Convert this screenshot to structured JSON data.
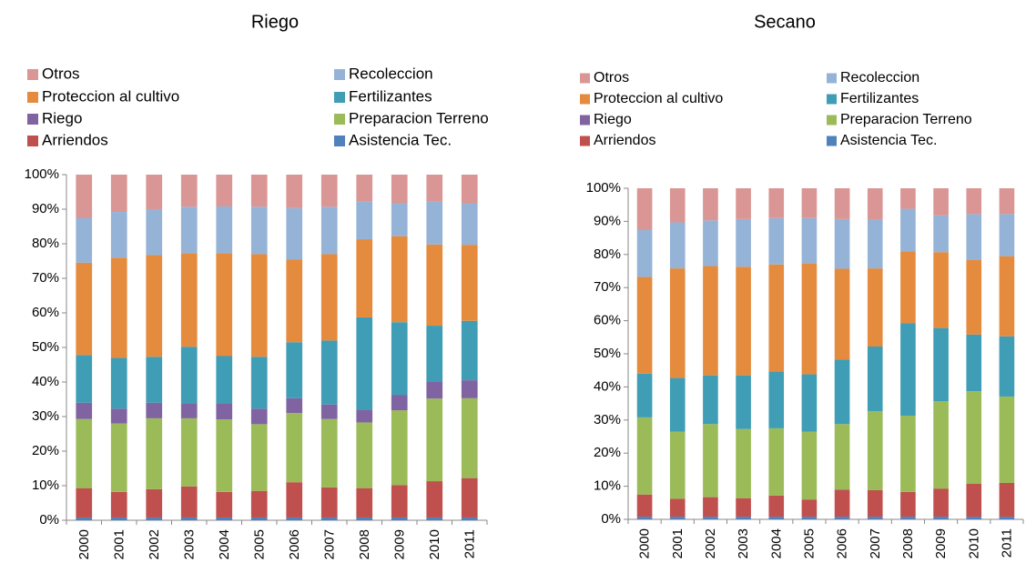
{
  "chart_data": [
    {
      "type": "bar",
      "stacked": true,
      "title": "Riego",
      "categories": [
        "2000",
        "2001",
        "2002",
        "2003",
        "2004",
        "2005",
        "2006",
        "2007",
        "2008",
        "2009",
        "2010",
        "2011"
      ],
      "ylim": [
        0,
        100
      ],
      "yticks": [
        {
          "value": 0,
          "label": "0%"
        },
        {
          "value": 10,
          "label": "10%"
        },
        {
          "value": 20,
          "label": "20%"
        },
        {
          "value": 30,
          "label": "30%"
        },
        {
          "value": 40,
          "label": "40%"
        },
        {
          "value": 50,
          "label": "50%"
        },
        {
          "value": 60,
          "label": "60%"
        },
        {
          "value": 70,
          "label": "70%"
        },
        {
          "value": 80,
          "label": "80%"
        },
        {
          "value": 90,
          "label": "90%"
        },
        {
          "value": 100,
          "label": "100%"
        }
      ],
      "series": [
        {
          "name": "Asistencia Tec.",
          "color": "#4f81bd",
          "values": [
            0.8,
            0.8,
            0.8,
            0.8,
            0.8,
            0.8,
            0.8,
            0.8,
            0.8,
            0.8,
            0.8,
            0.8
          ]
        },
        {
          "name": "Arriendos",
          "color": "#c0504d",
          "values": [
            8.5,
            7.4,
            8.2,
            9,
            7.4,
            7.7,
            10.2,
            8.7,
            8.5,
            9.4,
            10.5,
            11.4
          ]
        },
        {
          "name": "Preparacion Terreno",
          "color": "#9bbb59",
          "values": [
            20,
            19.8,
            20.5,
            19.7,
            21,
            19.3,
            20,
            19.8,
            19,
            21.6,
            23.9,
            23.1
          ]
        },
        {
          "name": "Riego",
          "color": "#8064a2",
          "values": [
            4.7,
            4.3,
            4.5,
            4.3,
            4.6,
            4.5,
            4.3,
            4.2,
            3.7,
            4.5,
            4.8,
            5.2
          ]
        },
        {
          "name": "Fertilizantes",
          "color": "#3f9db5",
          "values": [
            13.8,
            14.7,
            13.3,
            16.4,
            13.7,
            15,
            16.2,
            18.5,
            26.7,
            21,
            16.3,
            17.2
          ]
        },
        {
          "name": "Proteccion al cultivo",
          "color": "#e58b3e",
          "values": [
            26.7,
            29,
            29.4,
            27.1,
            29.8,
            29.7,
            24,
            25,
            22.6,
            24.9,
            23.5,
            22
          ]
        },
        {
          "name": "Recoleccion",
          "color": "#95b3d7",
          "values": [
            13,
            13.2,
            13.3,
            13.4,
            13.5,
            13.7,
            14.8,
            13.7,
            10.9,
            9.5,
            12.4,
            12
          ]
        },
        {
          "name": "Otros",
          "color": "#d99694",
          "values": [
            12.5,
            10.8,
            10,
            9.3,
            9.2,
            9.3,
            9.7,
            9.3,
            7.8,
            8.3,
            7.8,
            8.3
          ]
        }
      ]
    },
    {
      "type": "bar",
      "stacked": true,
      "title": "Secano",
      "categories": [
        "2000",
        "2001",
        "2002",
        "2003",
        "2004",
        "2005",
        "2006",
        "2007",
        "2008",
        "2009",
        "2010",
        "2011"
      ],
      "ylim": [
        0,
        100
      ],
      "yticks": [
        {
          "value": 0,
          "label": "0%"
        },
        {
          "value": 10,
          "label": "10%"
        },
        {
          "value": 20,
          "label": "20%"
        },
        {
          "value": 30,
          "label": "30%"
        },
        {
          "value": 40,
          "label": "40%"
        },
        {
          "value": 50,
          "label": "50%"
        },
        {
          "value": 60,
          "label": "60%"
        },
        {
          "value": 70,
          "label": "70%"
        },
        {
          "value": 80,
          "label": "80%"
        },
        {
          "value": 90,
          "label": "90%"
        },
        {
          "value": 100,
          "label": "100%"
        }
      ],
      "series": [
        {
          "name": "Asistencia Tec.",
          "color": "#4f81bd",
          "values": [
            0.8,
            0.8,
            0.8,
            0.8,
            0.8,
            0.8,
            0.8,
            0.8,
            0.8,
            0.8,
            0.8,
            0.8
          ]
        },
        {
          "name": "Arriendos",
          "color": "#c0504d",
          "values": [
            6.7,
            5.4,
            5.9,
            5.6,
            6.4,
            5.2,
            8.2,
            8,
            7.5,
            8.5,
            10,
            10.2
          ]
        },
        {
          "name": "Preparacion Terreno",
          "color": "#9bbb59",
          "values": [
            23.3,
            20.3,
            22.1,
            20.9,
            20.3,
            20.5,
            19.8,
            23.9,
            23,
            26.4,
            27.9,
            26.1
          ]
        },
        {
          "name": "Riego",
          "color": "#8064a2",
          "values": [
            0,
            0,
            0,
            0,
            0,
            0,
            0,
            0,
            0,
            0,
            0,
            0
          ]
        },
        {
          "name": "Fertilizantes",
          "color": "#3f9db5",
          "values": [
            13.2,
            16.2,
            14.7,
            16.2,
            17.2,
            17.3,
            19.5,
            19.5,
            28,
            22.1,
            17.1,
            18.2
          ]
        },
        {
          "name": "Proteccion al cultivo",
          "color": "#e58b3e",
          "values": [
            29.2,
            33.1,
            33,
            32.8,
            32.3,
            33.5,
            27.4,
            23.6,
            21.7,
            22.9,
            22.5,
            24.2
          ]
        },
        {
          "name": "Recoleccion",
          "color": "#95b3d7",
          "values": [
            14.3,
            13.9,
            13.8,
            14.4,
            14,
            13.7,
            15,
            14.7,
            12.8,
            11.1,
            13.9,
            12.7
          ]
        },
        {
          "name": "Otros",
          "color": "#d99694",
          "values": [
            12.5,
            10.3,
            9.7,
            9.3,
            9,
            9,
            9.3,
            9.5,
            6.2,
            8.2,
            7.8,
            7.8
          ]
        }
      ]
    }
  ]
}
